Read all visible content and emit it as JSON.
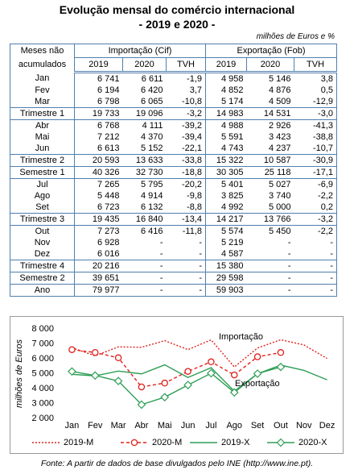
{
  "header": {
    "title": "Evolução mensal do comércio internacional",
    "subtitle": "-  2019 e 2020  -",
    "unit": "milhões de Euros e %"
  },
  "table": {
    "corner": "Meses não acumulados",
    "groups": [
      "Importação (Cif)",
      "Exportação (Fob)"
    ],
    "columns": [
      "2019",
      "2020",
      "TVH",
      "2019",
      "2020",
      "TVH"
    ],
    "rows": [
      [
        "Jan",
        "6 741",
        "6 611",
        "-1,9",
        "4 958",
        "5 146",
        "3,8"
      ],
      [
        "Fev",
        "6 194",
        "6 420",
        "3,7",
        "4 852",
        "4 876",
        "0,5"
      ],
      [
        "Mar",
        "6 798",
        "6 065",
        "-10,8",
        "5 174",
        "4 509",
        "-12,9"
      ],
      [
        "Trimestre 1",
        "19 733",
        "19 096",
        "-3,2",
        "14 983",
        "14 531",
        "-3,0"
      ],
      [
        "Abr",
        "6 768",
        "4 111",
        "-39,2",
        "4 988",
        "2 926",
        "-41,3"
      ],
      [
        "Mai",
        "7 212",
        "4 370",
        "-39,4",
        "5 591",
        "3 423",
        "-38,8"
      ],
      [
        "Jun",
        "6 613",
        "5 152",
        "-22,1",
        "4 743",
        "4 237",
        "-10,7"
      ],
      [
        "Trimestre 2",
        "20 593",
        "13 633",
        "-33,8",
        "15 322",
        "10 587",
        "-30,9"
      ],
      [
        "Semestre 1",
        "40 326",
        "32 730",
        "-18,8",
        "30 305",
        "25 118",
        "-17,1"
      ],
      [
        "Jul",
        "7 265",
        "5 795",
        "-20,2",
        "5 401",
        "5 027",
        "-6,9"
      ],
      [
        "Ago",
        "5 448",
        "4 914",
        "-9,8",
        "3 825",
        "3 740",
        "-2,2"
      ],
      [
        "Set",
        "6 723",
        "6 132",
        "-8,8",
        "4 992",
        "5 000",
        "0,2"
      ],
      [
        "Trimestre 3",
        "19 435",
        "16 840",
        "-13,4",
        "14 217",
        "13 766",
        "-3,2"
      ],
      [
        "Out",
        "7 273",
        "6 416",
        "-11,8",
        "5 574",
        "5 450",
        "-2,2"
      ],
      [
        "Nov",
        "6 928",
        "-",
        "-",
        "5 219",
        "-",
        "-"
      ],
      [
        "Dez",
        "6 016",
        "-",
        "-",
        "4 587",
        "-",
        "-"
      ],
      [
        "Trimestre 4",
        "20 216",
        "-",
        "-",
        "15 380",
        "-",
        "-"
      ],
      [
        "Semestre 2",
        "39 651",
        "-",
        "-",
        "29 598",
        "-",
        "-"
      ],
      [
        "Ano",
        "79 977",
        "-",
        "-",
        "59 903",
        "-",
        "-"
      ]
    ]
  },
  "chart_data": {
    "type": "line",
    "y_label": "milhões de Euros",
    "categories": [
      "Jan",
      "Fev",
      "Mar",
      "Abr",
      "Mai",
      "Jun",
      "Jul",
      "Ago",
      "Set",
      "Out",
      "Nov",
      "Dez"
    ],
    "series": [
      {
        "name": "2019-M",
        "color": "#e0201b",
        "values": [
          6741,
          6194,
          6798,
          6768,
          7212,
          6613,
          7265,
          5448,
          6723,
          7273,
          6928,
          6016
        ]
      },
      {
        "name": "2020-M",
        "color": "#e0201b",
        "values": [
          6611,
          6420,
          6065,
          4111,
          4370,
          5152,
          5795,
          4914,
          6132,
          6416,
          null,
          null
        ]
      },
      {
        "name": "2019-X",
        "color": "#2e9e55",
        "values": [
          4958,
          4852,
          5174,
          4988,
          5591,
          4743,
          5401,
          3825,
          4992,
          5574,
          5219,
          4587
        ]
      },
      {
        "name": "2020-X",
        "color": "#2e9e55",
        "values": [
          5146,
          4876,
          4509,
          2926,
          3423,
          4237,
          5027,
          3740,
          5000,
          5450,
          null,
          null
        ]
      }
    ],
    "ylim": [
      2000,
      8000
    ],
    "yticks": [
      {
        "value": 2000,
        "label": "2 000"
      },
      {
        "value": 3000,
        "label": "3 000"
      },
      {
        "value": 4000,
        "label": "4 000"
      },
      {
        "value": 5000,
        "label": "5 000"
      },
      {
        "value": 6000,
        "label": "6 000"
      },
      {
        "value": 7000,
        "label": "7 000"
      },
      {
        "value": 8000,
        "label": "8 000"
      }
    ],
    "grid": false,
    "annotations": [
      "Importação",
      "Exportação"
    ]
  },
  "source": "Fonte: A partir de dados de base divulgados pelo INE (http://www.ine.pt)."
}
